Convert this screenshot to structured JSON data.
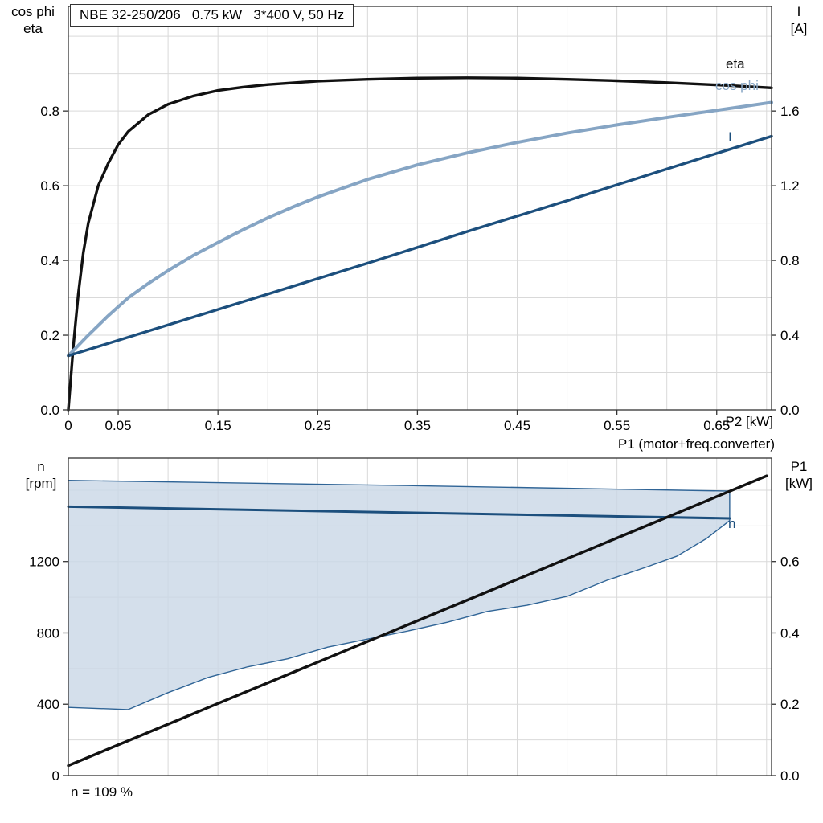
{
  "header": {
    "title_box": "NBE 32-250/206   0.75 kW   3*400 V, 50 Hz"
  },
  "labels": {
    "top_left_line1": "cos phi",
    "top_left_line2": "eta",
    "top_right_line1": "I",
    "top_right_line2": "[A]",
    "x_axis": "P2 [kW]",
    "bottom_left_line1": "n",
    "bottom_left_line2": "[rpm]",
    "bottom_right_line1": "P1",
    "bottom_right_line2": "[kW]",
    "p1_caption": "P1 (motor+freq.converter)",
    "footer": "n = 109 %",
    "curve_eta": "eta",
    "curve_cosphi": "cos phi",
    "curve_I": "I",
    "curve_n": "n"
  },
  "colors": {
    "black_curve": "#111111",
    "light_blue_curve": "#86A5C4",
    "dark_blue_curve": "#1C4F7D",
    "envelope_fill": "#c9d7e6",
    "envelope_stroke": "#2f6496",
    "grid": "#d9d9d9",
    "border": "#333333"
  },
  "chart_data": [
    {
      "type": "line",
      "title": "NBE 32-250/206   0.75 kW   3*400 V, 50 Hz",
      "xlabel": "P2 [kW]",
      "ylabel_left": "cos phi / eta",
      "ylabel_right": "I [A]",
      "xlim": [
        0,
        0.705
      ],
      "ylim_left": [
        0,
        1.08
      ],
      "ylim_right": [
        0,
        2.16
      ],
      "x_grid_step": 0.05,
      "y_grid_step_left": 0.1,
      "x_ticks": [
        {
          "v": 0,
          "l": "0"
        },
        {
          "v": 0.05,
          "l": "0.05"
        },
        {
          "v": 0.15,
          "l": "0.15"
        },
        {
          "v": 0.25,
          "l": "0.25"
        },
        {
          "v": 0.35,
          "l": "0.35"
        },
        {
          "v": 0.45,
          "l": "0.45"
        },
        {
          "v": 0.55,
          "l": "0.55"
        },
        {
          "v": 0.65,
          "l": "0.65"
        }
      ],
      "y_ticks_left": [
        {
          "v": 0.0,
          "l": "0.0"
        },
        {
          "v": 0.2,
          "l": "0.2"
        },
        {
          "v": 0.4,
          "l": "0.4"
        },
        {
          "v": 0.6,
          "l": "0.6"
        },
        {
          "v": 0.8,
          "l": "0.8"
        }
      ],
      "y_ticks_right": [
        {
          "v": 0.0,
          "l": "0.0"
        },
        {
          "v": 0.4,
          "l": "0.4"
        },
        {
          "v": 0.8,
          "l": "0.8"
        },
        {
          "v": 1.2,
          "l": "1.2"
        },
        {
          "v": 1.6,
          "l": "1.6"
        }
      ],
      "series": [
        {
          "name": "eta",
          "axis": "left",
          "color": "#111111",
          "width": 3.4,
          "points": [
            [
              0,
              0
            ],
            [
              0.005,
              0.17
            ],
            [
              0.01,
              0.31
            ],
            [
              0.015,
              0.42
            ],
            [
              0.02,
              0.5
            ],
            [
              0.03,
              0.6
            ],
            [
              0.04,
              0.66
            ],
            [
              0.05,
              0.71
            ],
            [
              0.06,
              0.745
            ],
            [
              0.08,
              0.79
            ],
            [
              0.1,
              0.818
            ],
            [
              0.125,
              0.84
            ],
            [
              0.15,
              0.855
            ],
            [
              0.175,
              0.864
            ],
            [
              0.2,
              0.871
            ],
            [
              0.25,
              0.88
            ],
            [
              0.3,
              0.885
            ],
            [
              0.35,
              0.888
            ],
            [
              0.4,
              0.889
            ],
            [
              0.45,
              0.888
            ],
            [
              0.5,
              0.885
            ],
            [
              0.55,
              0.881
            ],
            [
              0.6,
              0.876
            ],
            [
              0.65,
              0.87
            ],
            [
              0.705,
              0.862
            ]
          ]
        },
        {
          "name": "cos phi",
          "axis": "left",
          "color": "#86A5C4",
          "width": 4,
          "points": [
            [
              0,
              0.145
            ],
            [
              0.02,
              0.2
            ],
            [
              0.04,
              0.252
            ],
            [
              0.06,
              0.3
            ],
            [
              0.08,
              0.338
            ],
            [
              0.1,
              0.373
            ],
            [
              0.125,
              0.413
            ],
            [
              0.15,
              0.448
            ],
            [
              0.175,
              0.482
            ],
            [
              0.2,
              0.514
            ],
            [
              0.225,
              0.543
            ],
            [
              0.25,
              0.57
            ],
            [
              0.3,
              0.617
            ],
            [
              0.35,
              0.656
            ],
            [
              0.4,
              0.688
            ],
            [
              0.45,
              0.716
            ],
            [
              0.5,
              0.741
            ],
            [
              0.55,
              0.763
            ],
            [
              0.6,
              0.783
            ],
            [
              0.65,
              0.802
            ],
            [
              0.705,
              0.823
            ]
          ]
        },
        {
          "name": "I",
          "axis": "right",
          "color": "#1C4F7D",
          "width": 3.4,
          "points": [
            [
              0,
              0.29
            ],
            [
              0.1,
              0.455
            ],
            [
              0.2,
              0.62
            ],
            [
              0.3,
              0.785
            ],
            [
              0.4,
              0.955
            ],
            [
              0.5,
              1.12
            ],
            [
              0.6,
              1.29
            ],
            [
              0.705,
              1.465
            ]
          ]
        }
      ]
    },
    {
      "type": "area+line",
      "title": "P1 (motor+freq.converter)",
      "xlabel": "",
      "ylabel_left": "n [rpm]",
      "ylabel_right": "P1 [kW]",
      "annotation": "n = 109 %",
      "xlim": [
        0,
        0.705
      ],
      "ylim_left": [
        0,
        1780
      ],
      "ylim_right": [
        0,
        0.89
      ],
      "x_grid_step": 0.05,
      "y_grid_step_left": 200,
      "y_ticks_left": [
        {
          "v": 0,
          "l": "0"
        },
        {
          "v": 400,
          "l": "400"
        },
        {
          "v": 800,
          "l": "800"
        },
        {
          "v": 1200,
          "l": "1200"
        }
      ],
      "y_ticks_right": [
        {
          "v": 0.0,
          "l": "0.0"
        },
        {
          "v": 0.2,
          "l": "0.2"
        },
        {
          "v": 0.4,
          "l": "0.4"
        },
        {
          "v": 0.6,
          "l": "0.6"
        }
      ],
      "envelope": {
        "name": "allowed-speed-range",
        "fill": "#c9d7e6",
        "stroke": "#2f6496",
        "upper": [
          [
            0,
            1655
          ],
          [
            0.35,
            1625
          ],
          [
            0.663,
            1595
          ]
        ],
        "lower": [
          [
            0,
            382
          ],
          [
            0.06,
            370
          ],
          [
            0.1,
            465
          ],
          [
            0.14,
            550
          ],
          [
            0.18,
            610
          ],
          [
            0.22,
            655
          ],
          [
            0.26,
            720
          ],
          [
            0.3,
            765
          ],
          [
            0.34,
            810
          ],
          [
            0.38,
            860
          ],
          [
            0.42,
            920
          ],
          [
            0.46,
            955
          ],
          [
            0.5,
            1005
          ],
          [
            0.54,
            1095
          ],
          [
            0.58,
            1170
          ],
          [
            0.61,
            1230
          ],
          [
            0.64,
            1330
          ],
          [
            0.663,
            1430
          ]
        ]
      },
      "series": [
        {
          "name": "n",
          "axis": "left",
          "color": "#1C4F7D",
          "width": 3,
          "points": [
            [
              0,
              1508
            ],
            [
              0.663,
              1442
            ]
          ]
        },
        {
          "name": "P1",
          "axis": "right",
          "color": "#111111",
          "width": 3.4,
          "points": [
            [
              0,
              0.028
            ],
            [
              0.7,
              0.84
            ]
          ]
        }
      ]
    }
  ]
}
